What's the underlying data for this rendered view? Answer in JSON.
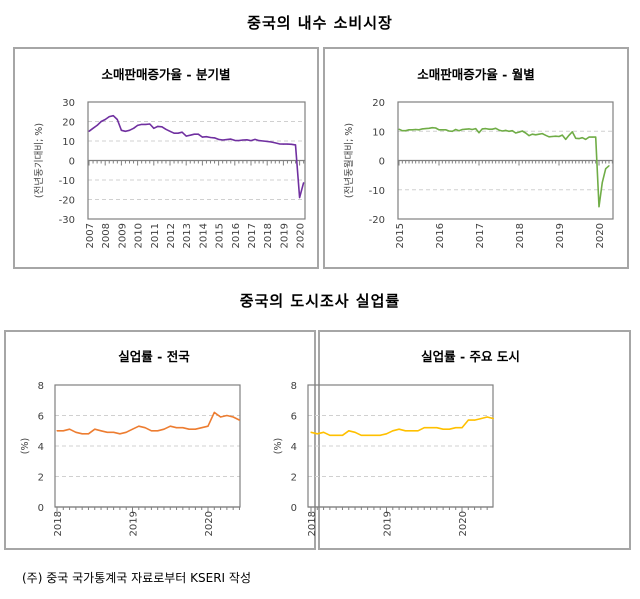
{
  "sections": [
    {
      "title": "중국의 내수 소비시장"
    },
    {
      "title": "중국의 도시조사 실업률"
    }
  ],
  "footnote": "(주) 중국 국가통계국 자료로부터 KSERI 작성",
  "chart_data": [
    {
      "type": "line",
      "title": "소매판매증가율 - 분기별",
      "ylabel": "(전년동기대비; %)",
      "frequency": "quarterly",
      "start": "2007-Q1",
      "ylim": [
        -30,
        30
      ],
      "yticks": [
        -30,
        -20,
        -10,
        0,
        10,
        20,
        30
      ],
      "xticks": [
        "2007",
        "2008",
        "2009",
        "2010",
        "2011",
        "2012",
        "2013",
        "2014",
        "2015",
        "2016",
        "2017",
        "2018",
        "2019",
        "2020"
      ],
      "color": "#7030a0",
      "grid": true,
      "values": [
        15,
        16.5,
        18,
        20,
        21,
        22.5,
        23,
        21,
        15.5,
        15,
        15.5,
        16.5,
        18,
        18.5,
        18.5,
        18.7,
        16.5,
        17.5,
        17.3,
        16,
        15,
        14,
        14,
        14.5,
        12.5,
        13,
        13.5,
        13.5,
        12,
        12.2,
        11.8,
        11.6,
        10.8,
        10.5,
        10.7,
        11,
        10.3,
        10.2,
        10.5,
        10.6,
        10.2,
        10.8,
        10.2,
        10,
        9.8,
        9.5,
        9,
        8.5,
        8.4,
        8.4,
        8.3,
        8,
        -19,
        -11.4
      ]
    },
    {
      "type": "line",
      "title": "소매판매증가율 - 월별",
      "ylabel": "(전년동월대비; %)",
      "frequency": "monthly",
      "start": "2015-01",
      "ylim": [
        -20,
        20
      ],
      "yticks": [
        -20,
        -10,
        0,
        10,
        20
      ],
      "xticks": [
        "2015",
        "2016",
        "2017",
        "2018",
        "2019",
        "2020"
      ],
      "color": "#70ad47",
      "grid": true,
      "values": [
        10.7,
        10.2,
        10.2,
        10.5,
        10.5,
        10.6,
        10.5,
        10.8,
        10.9,
        11,
        11.2,
        11.1,
        10.5,
        10.5,
        10.5,
        10.1,
        10,
        10.6,
        10.2,
        10.6,
        10.7,
        10.8,
        10.6,
        10.9,
        9.5,
        10.8,
        10.9,
        10.7,
        10.7,
        11,
        10.4,
        10.1,
        10.3,
        10,
        10.2,
        9.4,
        9.7,
        10.1,
        9.4,
        8.5,
        9,
        8.8,
        9,
        9.2,
        8.6,
        8.1,
        8.2,
        8.3,
        8.2,
        8.7,
        7.2,
        8.6,
        9.8,
        7.6,
        7.5,
        7.8,
        7.2,
        8,
        8,
        8,
        -15.8,
        -7.5,
        -2.8,
        -1.8
      ]
    },
    {
      "type": "line",
      "title": "실업률 - 전국",
      "ylabel": "(%)",
      "frequency": "monthly",
      "start": "2018-01",
      "ylim": [
        0,
        8
      ],
      "yticks": [
        0,
        2,
        4,
        6,
        8
      ],
      "xticks": [
        "2018",
        "2019",
        "2020"
      ],
      "color": "#ed7d31",
      "grid": true,
      "values": [
        5.0,
        5.0,
        5.1,
        4.9,
        4.8,
        4.8,
        5.1,
        5.0,
        4.9,
        4.9,
        4.8,
        4.9,
        5.1,
        5.3,
        5.2,
        5.0,
        5.0,
        5.1,
        5.3,
        5.2,
        5.2,
        5.1,
        5.1,
        5.2,
        5.3,
        6.2,
        5.9,
        6.0,
        5.9,
        5.7
      ]
    },
    {
      "type": "line",
      "title": "실업률 - 주요 도시",
      "ylabel": "(%)",
      "frequency": "monthly",
      "start": "2018-01",
      "ylim": [
        0,
        8
      ],
      "yticks": [
        0,
        2,
        4,
        6,
        8
      ],
      "xticks": [
        "2018",
        "2019",
        "2020"
      ],
      "color": "#ffc000",
      "grid": true,
      "values": [
        4.9,
        4.8,
        4.9,
        4.7,
        4.7,
        4.7,
        5.0,
        4.9,
        4.7,
        4.7,
        4.7,
        4.7,
        4.8,
        5.0,
        5.1,
        5.0,
        5.0,
        5.0,
        5.2,
        5.2,
        5.2,
        5.1,
        5.1,
        5.2,
        5.2,
        5.7,
        5.7,
        5.8,
        5.9,
        5.8
      ]
    }
  ]
}
